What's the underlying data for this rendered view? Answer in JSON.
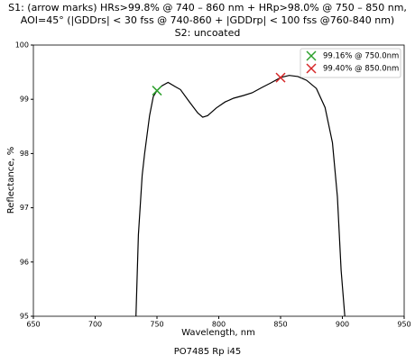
{
  "chart_data": {
    "type": "line",
    "title": [
      "S1: (arrow marks) HRs>99.8% @ 740 – 860 nm + HRp>98.0% @ 750 – 850 nm,",
      "AOI=45° (|GDDrs| < 30 fss @ 740-860 + |GDDrp| < 100 fss @760-840 nm)",
      "S2: uncoated"
    ],
    "xlabel": "Wavelength, nm",
    "ylabel": "Reflectance, %",
    "footer": "PO7485 Rp i45",
    "xlim": [
      650,
      950
    ],
    "xticks": [
      650,
      700,
      750,
      800,
      850,
      900,
      950
    ],
    "ylim": [
      95,
      100
    ],
    "yticks": [
      95,
      96,
      97,
      98,
      99,
      100
    ],
    "series": [
      {
        "color": "#000000",
        "x": [
          733,
          735,
          738,
          740,
          744,
          747,
          750,
          754,
          759,
          765,
          769,
          776,
          783,
          787,
          791,
          798,
          805,
          812,
          820,
          827,
          835,
          842,
          850,
          857,
          864,
          871,
          879,
          886,
          892,
          896,
          899,
          902
        ],
        "values": [
          95.0,
          96.5,
          97.6,
          98.0,
          98.7,
          99.05,
          99.16,
          99.25,
          99.31,
          99.23,
          99.18,
          98.96,
          98.75,
          98.67,
          98.7,
          98.84,
          98.95,
          99.02,
          99.07,
          99.12,
          99.22,
          99.3,
          99.4,
          99.44,
          99.42,
          99.35,
          99.2,
          98.85,
          98.2,
          97.2,
          95.85,
          95.0
        ]
      }
    ],
    "markers": [
      {
        "name": "99.16% @ 750.0nm",
        "color": "#2ca02c",
        "x": 750,
        "y": 99.16
      },
      {
        "name": "99.40% @ 850.0nm",
        "color": "#d62728",
        "x": 850,
        "y": 99.4
      }
    ]
  }
}
